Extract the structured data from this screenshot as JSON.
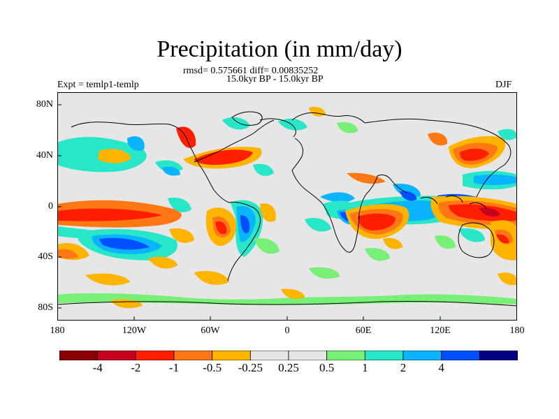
{
  "title": "Precipitation (in mm/day)",
  "stats": "rmsd= 0.575661 diff= 0.00835252",
  "period": "15.0kyr BP - 15.0kyr BP",
  "expt": "Expt = temlp1-temlp",
  "season": "DJF",
  "lat_ticks": [
    "80N",
    "40N",
    "0",
    "40S",
    "80S"
  ],
  "lon_ticks": [
    "180",
    "120W",
    "60W",
    "0",
    "60E",
    "120E",
    "180"
  ],
  "colorbar": {
    "colors": [
      "#8b0000",
      "#c8001e",
      "#ff1e00",
      "#ff7814",
      "#ffb400",
      "#e6e6e6",
      "#e6e6e6",
      "#78f078",
      "#28e6c8",
      "#0ab4ff",
      "#0050ff",
      "#000080"
    ],
    "labels": [
      "-4",
      "-2",
      "-1",
      "-0.5",
      "-0.25",
      "0.25",
      "0.5",
      "1",
      "2",
      "4"
    ]
  }
}
